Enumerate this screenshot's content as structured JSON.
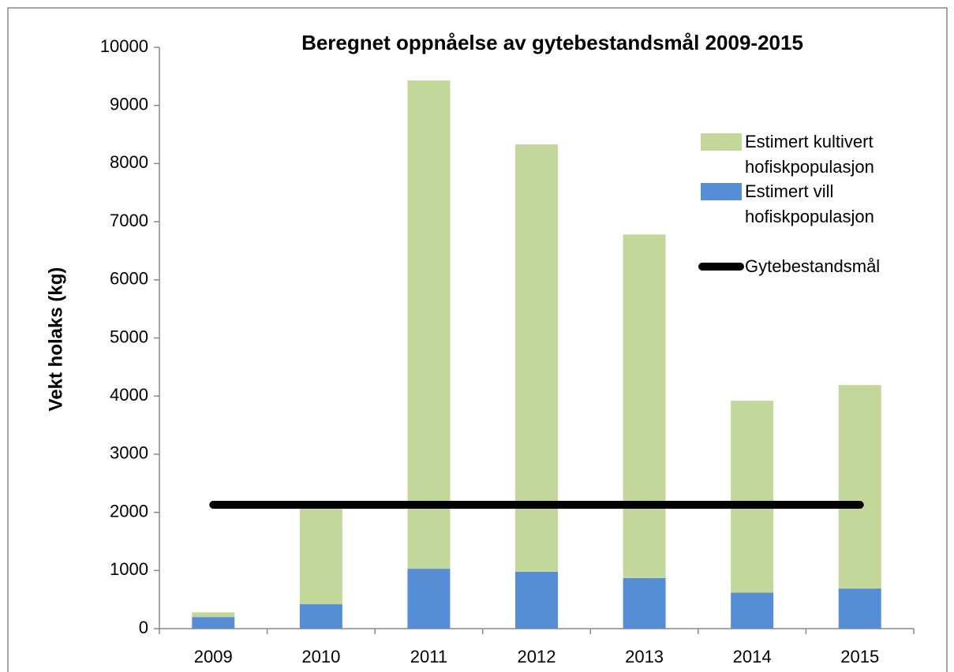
{
  "chart_data": {
    "type": "bar",
    "title": "Beregnet oppnåelse av gytebestandsmål 2009-2015",
    "y_label": "Vekt holaks (kg)",
    "categories": [
      "2009",
      "2010",
      "2011",
      "2012",
      "2013",
      "2014",
      "2015"
    ],
    "series": [
      {
        "name": "Estimert kultivert hofiskpopulasjon",
        "color": "#c4d79b",
        "values": [
          80,
          1640,
          8400,
          7350,
          5910,
          3300,
          3500
        ],
        "stack_order": 2
      },
      {
        "name": "Estimert vill hofiskpopulasjon",
        "color": "#558ed5",
        "values": [
          200,
          420,
          1030,
          980,
          870,
          620,
          690
        ],
        "stack_order": 1
      },
      {
        "name": "Gytebestandsmål",
        "color": "#000000",
        "type": "line",
        "values": [
          2130,
          2130,
          2130,
          2130,
          2130,
          2130,
          2130
        ]
      }
    ],
    "stacked": true,
    "ylim": [
      0,
      10000
    ],
    "yticks": [
      0,
      1000,
      2000,
      3000,
      4000,
      5000,
      6000,
      7000,
      8000,
      9000,
      10000
    ],
    "grid": false,
    "legend": "upper right"
  }
}
